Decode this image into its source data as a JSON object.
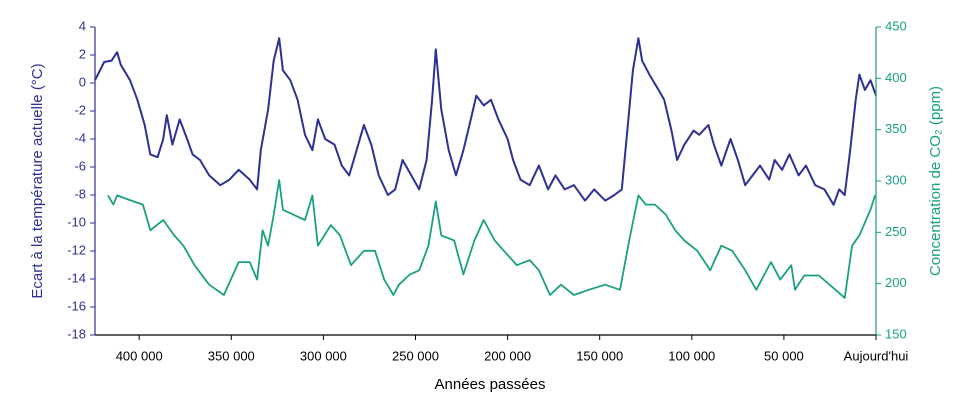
{
  "chart_data": {
    "type": "line",
    "ylabel": "Ecart à la température actuelle (°C)",
    "y2label": "Concentration de CO₂ (ppm)",
    "xlabel": "Années passées",
    "xlim": [
      424000,
      0
    ],
    "xticks": [
      {
        "value": 400000,
        "label": "400 000"
      },
      {
        "value": 350000,
        "label": "350 000"
      },
      {
        "value": 300000,
        "label": "300 000"
      },
      {
        "value": 250000,
        "label": "250 000"
      },
      {
        "value": 200000,
        "label": "200 000"
      },
      {
        "value": 150000,
        "label": "150 000"
      },
      {
        "value": 100000,
        "label": "100 000"
      },
      {
        "value": 50000,
        "label": "50 000"
      },
      {
        "value": 0,
        "label": "Aujourd'hui"
      }
    ],
    "ylim": [
      -18,
      4
    ],
    "yticks": [
      -18,
      -16,
      -14,
      -12,
      -10,
      -8,
      -6,
      -4,
      -2,
      0,
      2,
      4
    ],
    "y2lim": [
      150,
      450
    ],
    "y2ticks": [
      150,
      200,
      250,
      300,
      350,
      400,
      450
    ],
    "ycolor": "#2e3192",
    "y2color": "#1aa083",
    "grid": false,
    "series": [
      {
        "color": "#2e3192",
        "axis": "y",
        "x": [
          424000,
          419000,
          415000,
          412000,
          410000,
          405000,
          401000,
          397000,
          394000,
          390000,
          387000,
          385000,
          382000,
          378000,
          374000,
          371000,
          367000,
          362000,
          356000,
          351000,
          346000,
          340000,
          336000,
          334000,
          330000,
          327000,
          324000,
          322000,
          318000,
          314000,
          310000,
          306000,
          303000,
          299000,
          294000,
          290000,
          286000,
          282000,
          278000,
          274000,
          270000,
          265000,
          261000,
          257000,
          254000,
          248000,
          244000,
          241000,
          239000,
          236000,
          232000,
          228000,
          224000,
          220000,
          217000,
          213000,
          209000,
          205000,
          200000,
          197000,
          193000,
          188000,
          183000,
          178000,
          174000,
          169000,
          164000,
          158000,
          153000,
          147000,
          142000,
          138000,
          135000,
          132000,
          129000,
          127000,
          123000,
          118000,
          115000,
          111000,
          108000,
          104000,
          99000,
          96000,
          91000,
          88000,
          84000,
          79000,
          75000,
          71000,
          67000,
          63000,
          58000,
          55000,
          51000,
          47000,
          42000,
          38000,
          33000,
          28000,
          23000,
          20000,
          17000,
          14000,
          11000,
          9000,
          6000,
          3000,
          0
        ],
        "values": [
          0.2,
          1.5,
          1.6,
          2.2,
          1.3,
          0.2,
          -1.2,
          -3,
          -5.1,
          -5.3,
          -4,
          -2.3,
          -4.4,
          -2.6,
          -4,
          -5.1,
          -5.5,
          -6.6,
          -7.3,
          -6.9,
          -6.2,
          -6.9,
          -7.6,
          -4.8,
          -1.9,
          1.6,
          3.2,
          0.9,
          0.2,
          -1.2,
          -3.7,
          -4.8,
          -2.6,
          -4,
          -4.4,
          -5.9,
          -6.6,
          -4.8,
          -3,
          -4.4,
          -6.6,
          -8,
          -7.6,
          -5.5,
          -6.2,
          -7.6,
          -5.5,
          -1.2,
          2.4,
          -1.9,
          -4.8,
          -6.6,
          -4.8,
          -2.6,
          -0.9,
          -1.6,
          -1.2,
          -2.6,
          -4,
          -5.5,
          -6.9,
          -7.3,
          -5.9,
          -7.6,
          -6.6,
          -7.6,
          -7.3,
          -8.4,
          -7.6,
          -8.4,
          -8,
          -7.6,
          -3.4,
          0.9,
          3.2,
          1.6,
          0.6,
          -0.5,
          -1.2,
          -3.4,
          -5.5,
          -4.4,
          -3.4,
          -3.7,
          -3,
          -4.4,
          -5.9,
          -4,
          -5.5,
          -7.3,
          -6.6,
          -5.9,
          -6.9,
          -5.5,
          -6.2,
          -5.1,
          -6.6,
          -5.9,
          -7.3,
          -7.6,
          -8.7,
          -7.6,
          -8,
          -4.8,
          -1.2,
          0.6,
          -0.5,
          0.2,
          -0.9
        ]
      },
      {
        "color": "#1aa083",
        "axis": "y2",
        "x": [
          417000,
          414000,
          412000,
          406000,
          398000,
          394000,
          387000,
          381000,
          376000,
          370000,
          362000,
          354000,
          346000,
          340000,
          336000,
          333000,
          330000,
          327000,
          324000,
          322000,
          316000,
          310000,
          306000,
          303000,
          296000,
          291000,
          285000,
          278000,
          272000,
          267000,
          262000,
          259000,
          253000,
          248000,
          243000,
          239000,
          236000,
          229000,
          224000,
          218000,
          213000,
          207000,
          202000,
          195000,
          188000,
          183000,
          177000,
          171000,
          164000,
          156000,
          147000,
          139000,
          134000,
          129000,
          125000,
          120000,
          114000,
          109000,
          104000,
          97000,
          90000,
          84000,
          78000,
          71000,
          65000,
          57000,
          52000,
          46000,
          44000,
          39000,
          31000,
          22000,
          17000,
          13000,
          9000,
          3000,
          500
        ],
        "values": [
          286,
          277,
          286,
          282,
          277,
          252,
          262,
          247,
          237,
          218,
          199,
          189,
          221,
          221,
          204,
          252,
          237,
          267,
          301,
          272,
          267,
          262,
          286,
          237,
          257,
          247,
          218,
          232,
          232,
          204,
          189,
          199,
          209,
          213,
          237,
          280,
          247,
          242,
          209,
          242,
          262,
          242,
          232,
          218,
          223,
          213,
          189,
          199,
          189,
          194,
          199,
          194,
          242,
          286,
          277,
          277,
          267,
          252,
          242,
          232,
          213,
          237,
          232,
          213,
          194,
          221,
          204,
          218,
          194,
          208,
          208,
          194,
          186,
          237,
          247,
          272,
          286
        ]
      }
    ]
  }
}
